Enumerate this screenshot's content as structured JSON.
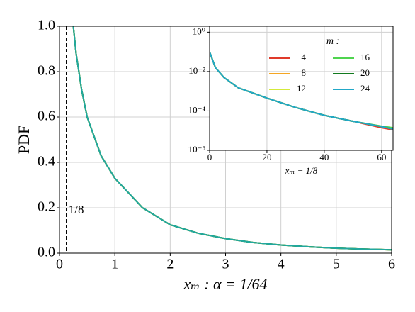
{
  "chart_data": [
    {
      "type": "line",
      "xlabel": "xₘ :    α = 1/64",
      "ylabel": "PDF",
      "xlim": [
        0,
        6
      ],
      "ylim": [
        0,
        1
      ],
      "xticks": [
        0,
        1,
        2,
        3,
        4,
        5,
        6
      ],
      "yticks": [
        {
          "value": 0,
          "label": "0.0"
        },
        0.2,
        0.4,
        0.6,
        0.8,
        {
          "value": 1,
          "label": "1.0"
        }
      ],
      "grid": true,
      "vline": {
        "x": 0.125,
        "label": "1/8"
      },
      "x": [
        0.25,
        0.3,
        0.4,
        0.5,
        0.75,
        1,
        1.5,
        2,
        2.5,
        3,
        3.5,
        4,
        4.5,
        5,
        5.5,
        6
      ],
      "series": [
        {
          "color": "#e03a2a",
          "values": [
            1.0,
            0.88,
            0.72,
            0.6,
            0.43,
            0.33,
            0.2,
            0.125,
            0.088,
            0.064,
            0.047,
            0.036,
            0.028,
            0.022,
            0.018,
            0.015
          ]
        },
        {
          "color": "#f5a623",
          "values": [
            1.0,
            0.88,
            0.72,
            0.6,
            0.43,
            0.33,
            0.2,
            0.125,
            0.088,
            0.064,
            0.047,
            0.036,
            0.028,
            0.022,
            0.018,
            0.015
          ]
        },
        {
          "color": "#d4ea3a",
          "values": [
            1.0,
            0.88,
            0.72,
            0.6,
            0.43,
            0.33,
            0.2,
            0.125,
            0.088,
            0.064,
            0.047,
            0.036,
            0.028,
            0.022,
            0.018,
            0.015
          ]
        },
        {
          "color": "#4fd44f",
          "values": [
            1.0,
            0.88,
            0.72,
            0.6,
            0.43,
            0.33,
            0.2,
            0.125,
            0.088,
            0.064,
            0.047,
            0.036,
            0.028,
            0.022,
            0.018,
            0.015
          ]
        },
        {
          "color": "#127a1e",
          "values": [
            1.0,
            0.88,
            0.72,
            0.6,
            0.43,
            0.33,
            0.2,
            0.125,
            0.088,
            0.064,
            0.047,
            0.036,
            0.028,
            0.022,
            0.018,
            0.015
          ]
        },
        {
          "color": "#22a8a0",
          "values": [
            1.0,
            0.88,
            0.72,
            0.6,
            0.43,
            0.33,
            0.2,
            0.125,
            0.088,
            0.064,
            0.047,
            0.036,
            0.028,
            0.022,
            0.018,
            0.015
          ]
        }
      ]
    },
    {
      "type": "line",
      "xlabel": "xₘ − 1/8",
      "log_y": true,
      "xlim": [
        0,
        64
      ],
      "ylim": [
        1e-06,
        2
      ],
      "xticks": [
        0,
        20,
        40,
        60
      ],
      "yticks": [
        {
          "value": 1e-06,
          "label": "10⁻⁶"
        },
        {
          "value": 0.0001,
          "label": "10⁻⁴"
        },
        {
          "value": 0.01,
          "label": "10⁻²"
        },
        {
          "value": 1,
          "label": "10⁰"
        }
      ],
      "grid": true,
      "legend_title": "m :",
      "legend": "upper right",
      "x": [
        0,
        2,
        5,
        10,
        20,
        30,
        40,
        50,
        60,
        64
      ],
      "series": [
        {
          "name": "4",
          "color": "#e03a2a",
          "values": [
            0.1,
            0.016,
            0.005,
            0.0015,
            0.00045,
            0.00015,
            6e-05,
            3e-05,
            1.4e-05,
            1.1e-05
          ]
        },
        {
          "name": "8",
          "color": "#f5a623",
          "values": [
            0.1,
            0.016,
            0.005,
            0.0015,
            0.00045,
            0.00015,
            6e-05,
            3e-05,
            1.6e-05,
            1.2e-05
          ]
        },
        {
          "name": "12",
          "color": "#d4ea3a",
          "values": [
            0.1,
            0.016,
            0.005,
            0.0015,
            0.00045,
            0.00015,
            6e-05,
            3e-05,
            1.6e-05,
            1.2e-05
          ]
        },
        {
          "name": "16",
          "color": "#4fd44f",
          "values": [
            0.1,
            0.016,
            0.005,
            0.0015,
            0.00045,
            0.00015,
            6e-05,
            3e-05,
            1.7e-05,
            1.4e-05
          ]
        },
        {
          "name": "20",
          "color": "#127a1e",
          "values": [
            0.1,
            0.016,
            0.005,
            0.0015,
            0.00045,
            0.00015,
            6e-05,
            3e-05,
            1.6e-05,
            1.2e-05
          ]
        },
        {
          "name": "24",
          "color": "#22a8c8",
          "values": [
            0.1,
            0.016,
            0.005,
            0.0015,
            0.00045,
            0.00015,
            6e-05,
            3e-05,
            1.6e-05,
            1.2e-05
          ]
        }
      ]
    }
  ]
}
